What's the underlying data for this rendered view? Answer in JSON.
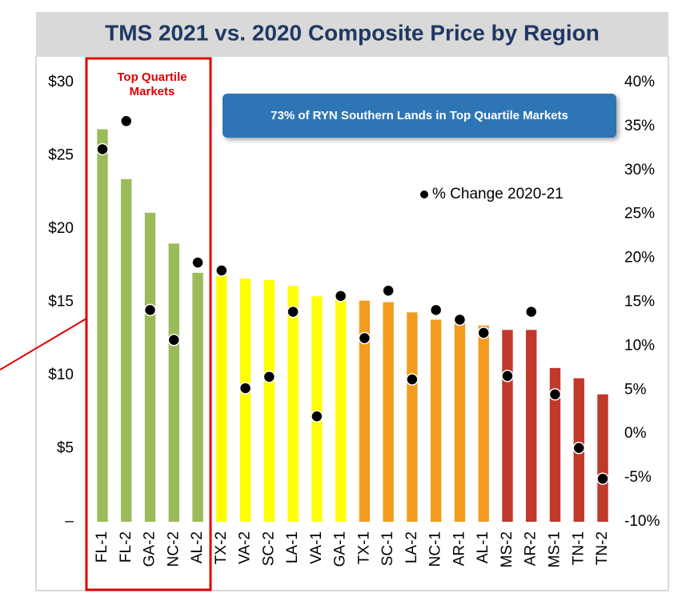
{
  "chart_data": {
    "type": "bar",
    "title": "TMS 2021 vs. 2020 Composite Price by Region",
    "categories": [
      "FL-1",
      "FL-2",
      "GA-2",
      "NC-2",
      "AL-2",
      "TX-2",
      "VA-2",
      "SC-2",
      "LA-1",
      "VA-1",
      "GA-1",
      "TX-1",
      "SC-1",
      "LA-2",
      "NC-1",
      "AR-1",
      "AL-1",
      "MS-2",
      "AR-2",
      "MS-1",
      "TN-1",
      "TN-2"
    ],
    "values": [
      26.8,
      23.4,
      21.1,
      19.0,
      17.0,
      16.8,
      16.6,
      16.5,
      16.1,
      15.4,
      15.3,
      15.1,
      15.0,
      14.3,
      13.8,
      13.6,
      13.4,
      13.1,
      13.1,
      10.5,
      9.8,
      8.7
    ],
    "bar_colors": [
      "#9bbb59",
      "#9bbb59",
      "#9bbb59",
      "#9bbb59",
      "#9bbb59",
      "#ffff00",
      "#ffff00",
      "#ffff00",
      "#ffff00",
      "#ffff00",
      "#ffff00",
      "#f39c1f",
      "#f39c1f",
      "#f39c1f",
      "#f39c1f",
      "#f39c1f",
      "#f39c1f",
      "#c0392b",
      "#c0392b",
      "#c0392b",
      "#c0392b",
      "#c0392b"
    ],
    "series": [
      {
        "name": "% Change 2020-21",
        "type": "scatter",
        "axis": "y2",
        "color": "#000000",
        "values": [
          32.4,
          35.6,
          14.1,
          10.7,
          19.5,
          18.6,
          5.2,
          6.5,
          13.9,
          2.0,
          15.7,
          10.9,
          16.3,
          6.2,
          14.1,
          13.0,
          11.5,
          6.6,
          13.9,
          4.5,
          -1.6,
          -5.1
        ]
      }
    ],
    "ylim": [
      0,
      30
    ],
    "yticks": [
      {
        "value": 0,
        "label": "–"
      },
      {
        "value": 5,
        "label": "$5"
      },
      {
        "value": 10,
        "label": "$10"
      },
      {
        "value": 15,
        "label": "$15"
      },
      {
        "value": 20,
        "label": "$20"
      },
      {
        "value": 25,
        "label": "$25"
      },
      {
        "value": 30,
        "label": "$30"
      }
    ],
    "y2lim": [
      -10,
      40
    ],
    "y2ticks": [
      {
        "value": -10,
        "label": "-10%"
      },
      {
        "value": -5,
        "label": "-5%"
      },
      {
        "value": 0,
        "label": "0%"
      },
      {
        "value": 5,
        "label": "5%"
      },
      {
        "value": 10,
        "label": "10%"
      },
      {
        "value": 15,
        "label": "15%"
      },
      {
        "value": 20,
        "label": "20%"
      },
      {
        "value": 25,
        "label": "25%"
      },
      {
        "value": 30,
        "label": "30%"
      },
      {
        "value": 35,
        "label": "35%"
      },
      {
        "value": 40,
        "label": "40%"
      }
    ],
    "grid": false,
    "legend": "upper right",
    "annotations": {
      "top_quartile": [
        "Top Quartile",
        "Markets"
      ],
      "callout": "73% of RYN Southern Lands in Top Quartile Markets"
    }
  }
}
